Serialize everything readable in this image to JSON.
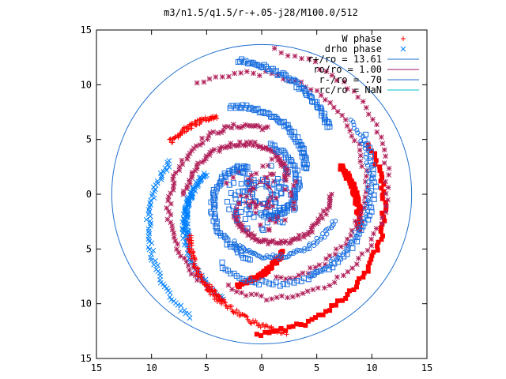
{
  "chart_data": {
    "type": "scatter",
    "title": "m3/n1.5/q1.5/r-+.05-j28/M100.0/512",
    "xlabel": "",
    "ylabel": "",
    "xlim": [
      15,
      -15
    ],
    "ylim": [
      -15,
      15
    ],
    "x_tick_labels": [
      "15",
      "10",
      "5",
      "0",
      "5",
      "10",
      "15"
    ],
    "y_tick_labels": [
      "15",
      "10",
      "5",
      "0",
      "5",
      "10",
      "15"
    ],
    "grid": false,
    "legend_position": "top-right",
    "colors": {
      "w_phase": "#ff0000",
      "drho_phase": "#0080ff",
      "star_marker": "#b0205a",
      "hollow_square": "#1a6fe0",
      "filled_square": "#ff0000",
      "circle_ro": "#2070d0",
      "circle_inner": "#a01060",
      "circle_cyan": "#00c0d0"
    },
    "series": [
      {
        "name": "W phase",
        "marker": "+"
      },
      {
        "name": "drho phase",
        "marker": "x"
      }
    ],
    "reference_lines": [
      {
        "label": "r+/ro = 13.61",
        "radius": 13.61
      },
      {
        "label": "ro/ro = 1.00",
        "radius": 1.0
      },
      {
        "label": "r-/ro = .70",
        "radius": 0.7
      },
      {
        "label": "rc/ro = NaN",
        "radius": null
      }
    ],
    "arms": [
      {
        "kind": "filled-red-square",
        "r0": 10.6,
        "r1": 12.8,
        "t0": 155,
        "t1": 272
      },
      {
        "kind": "filled-red-square",
        "r0": 7.6,
        "r1": 9.4,
        "t0": 160,
        "t1": 200
      },
      {
        "kind": "filled-red-square",
        "r0": 5.6,
        "r1": 8.6,
        "t0": 250,
        "t1": 285
      },
      {
        "kind": "star-purple",
        "r0": 13.2,
        "r1": 9.0,
        "t0": 95,
        "t1": 290
      },
      {
        "kind": "star-purple",
        "r0": 11.6,
        "r1": 7.8,
        "t0": 60,
        "t1": 260
      },
      {
        "kind": "star-purple",
        "r0": 9.8,
        "r1": 6.0,
        "t0": 300,
        "t1": 455
      },
      {
        "kind": "star-purple",
        "r0": 7.0,
        "r1": 2.6,
        "t0": 0,
        "t1": 150
      },
      {
        "kind": "star-purple",
        "r0": 6.4,
        "r1": 2.8,
        "t0": 180,
        "t1": 330
      },
      {
        "kind": "hollow-blue-square",
        "r0": 12.4,
        "r1": 8.6,
        "t0": 80,
        "t1": 135
      },
      {
        "kind": "hollow-blue-square",
        "r0": 10.8,
        "r1": 7.4,
        "t0": 150,
        "t1": 300
      },
      {
        "kind": "hollow-blue-square",
        "r0": 8.6,
        "r1": 4.6,
        "t0": 70,
        "t1": 150
      },
      {
        "kind": "hollow-blue-square",
        "r0": 6.0,
        "r1": 3.0,
        "t0": 280,
        "t1": 420
      },
      {
        "kind": "hollow-blue-square",
        "r0": 4.5,
        "r1": 1.8,
        "t0": 100,
        "t1": 260
      },
      {
        "kind": "blue-x",
        "r0": 13.0,
        "r1": 8.8,
        "t0": 300,
        "t1": 380
      },
      {
        "kind": "blue-x",
        "r0": 10.2,
        "r1": 6.4,
        "t0": 290,
        "t1": 360
      },
      {
        "kind": "blue-x",
        "r0": 7.8,
        "r1": 5.4,
        "t0": 330,
        "t1": 380
      },
      {
        "kind": "red-plus",
        "r0": 12.8,
        "r1": 9.6,
        "t0": 260,
        "t1": 300
      },
      {
        "kind": "red-plus",
        "r0": 10.6,
        "r1": 7.6,
        "t0": 290,
        "t1": 330
      },
      {
        "kind": "red-plus",
        "r0": 9.6,
        "r1": 8.2,
        "t0": 30,
        "t1": 60
      },
      {
        "kind": "blue-circle",
        "r0": 10.6,
        "r1": 8.6,
        "t0": 140,
        "t1": 240
      },
      {
        "kind": "blue-circle",
        "r0": 7.0,
        "r1": 5.0,
        "t0": 200,
        "t1": 300
      }
    ]
  }
}
